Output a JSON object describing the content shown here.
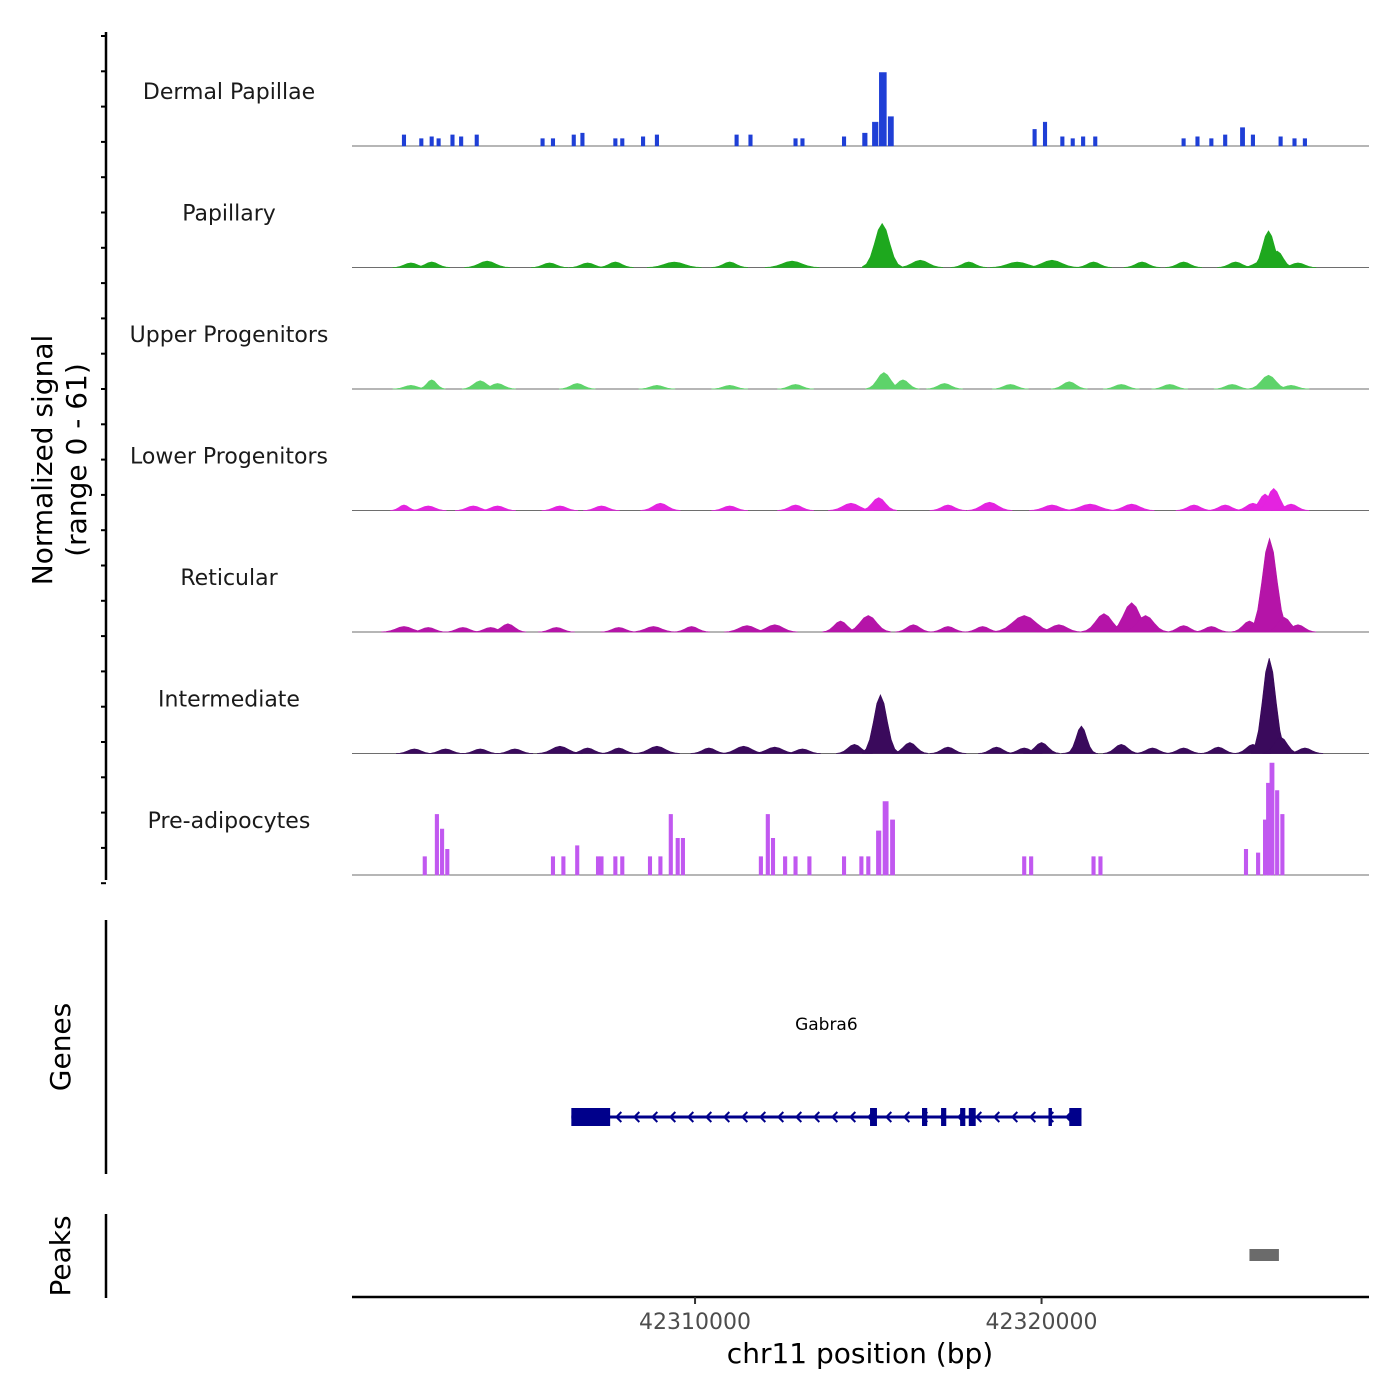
{
  "chart_data": {
    "type": "area",
    "title": "",
    "chromosome": "chr11",
    "xlabel": "chr11 position (bp)",
    "ylabel": "Normalized signal",
    "ylabel_range": "(range 0 - 61)",
    "ylim": [
      0,
      61
    ],
    "xlim": [
      42300100,
      42329450
    ],
    "x_ticks": [
      42310000,
      42320000
    ],
    "x_tick_labels": [
      "42310000",
      "42320000"
    ],
    "signal_tracks": [
      {
        "name": "Dermal Papillae",
        "color": "#1f3fd6",
        "sparse": true,
        "peaks": [
          [
            42301600,
            6,
            1
          ],
          [
            42302100,
            4,
            1
          ],
          [
            42302400,
            5,
            1
          ],
          [
            42302600,
            4,
            1
          ],
          [
            42303000,
            6,
            1
          ],
          [
            42303250,
            5,
            1
          ],
          [
            42303700,
            6,
            1
          ],
          [
            42305600,
            4,
            1
          ],
          [
            42305900,
            4,
            1
          ],
          [
            42306500,
            6,
            1
          ],
          [
            42306750,
            7,
            1
          ],
          [
            42307700,
            4,
            1
          ],
          [
            42307900,
            4,
            1
          ],
          [
            42308500,
            5,
            1
          ],
          [
            42308900,
            6,
            1
          ],
          [
            42311200,
            6,
            1
          ],
          [
            42311600,
            6,
            1
          ],
          [
            42312900,
            4,
            1
          ],
          [
            42313100,
            4,
            1
          ],
          [
            42314300,
            5,
            1
          ],
          [
            42314900,
            7,
            1.3
          ],
          [
            42315200,
            13,
            1.6
          ],
          [
            42315420,
            40,
            2
          ],
          [
            42315650,
            16,
            1.5
          ],
          [
            42319800,
            9,
            1
          ],
          [
            42320100,
            13,
            1
          ],
          [
            42320600,
            5,
            1
          ],
          [
            42320900,
            4,
            1
          ],
          [
            42321200,
            5,
            1
          ],
          [
            42321550,
            5,
            1
          ],
          [
            42324100,
            4,
            1
          ],
          [
            42324500,
            5,
            1
          ],
          [
            42324900,
            4,
            1
          ],
          [
            42325300,
            6,
            1
          ],
          [
            42325800,
            10,
            1.2
          ],
          [
            42326100,
            6,
            1
          ],
          [
            42326900,
            5,
            1
          ],
          [
            42327300,
            4,
            1
          ],
          [
            42327600,
            4,
            1
          ]
        ]
      },
      {
        "name": "Papillary",
        "color": "#1ea81e",
        "sparse": false,
        "peaks": [
          [
            42301800,
            2.5,
            2
          ],
          [
            42302400,
            3,
            2
          ],
          [
            42304000,
            3.5,
            2.5
          ],
          [
            42305800,
            2.5,
            2
          ],
          [
            42306900,
            2.5,
            2
          ],
          [
            42307700,
            3,
            2
          ],
          [
            42309400,
            3,
            3
          ],
          [
            42311000,
            3,
            2
          ],
          [
            42312800,
            3.5,
            3
          ],
          [
            42315400,
            24,
            2.2
          ],
          [
            42316500,
            4,
            2.5
          ],
          [
            42317900,
            3,
            2
          ],
          [
            42319300,
            3,
            3
          ],
          [
            42320300,
            4,
            3
          ],
          [
            42321500,
            3,
            2
          ],
          [
            42322900,
            3,
            2
          ],
          [
            42324100,
            3,
            2
          ],
          [
            42325600,
            3,
            2
          ],
          [
            42326300,
            3,
            2
          ],
          [
            42326550,
            20,
            1.8
          ],
          [
            42326800,
            9,
            1.8
          ],
          [
            42327400,
            2.5,
            2
          ]
        ]
      },
      {
        "name": "Upper Progenitors",
        "color": "#5ed36a",
        "sparse": false,
        "peaks": [
          [
            42301800,
            2,
            2
          ],
          [
            42302400,
            5,
            1.5
          ],
          [
            42303800,
            4.5,
            2
          ],
          [
            42304300,
            3,
            2
          ],
          [
            42306600,
            3,
            2
          ],
          [
            42308900,
            2,
            2
          ],
          [
            42311000,
            2,
            2
          ],
          [
            42312900,
            2.5,
            2
          ],
          [
            42315450,
            9,
            2
          ],
          [
            42316000,
            5,
            1.8
          ],
          [
            42317200,
            3,
            2
          ],
          [
            42319100,
            2.5,
            2
          ],
          [
            42320800,
            4,
            2
          ],
          [
            42322300,
            2.5,
            2
          ],
          [
            42323700,
            2.5,
            2
          ],
          [
            42325500,
            2.5,
            2
          ],
          [
            42326550,
            7.5,
            2.2
          ],
          [
            42327200,
            2,
            2
          ]
        ]
      },
      {
        "name": "Lower Progenitors",
        "color": "#e423e0",
        "sparse": false,
        "peaks": [
          [
            42301600,
            3,
            1.5
          ],
          [
            42302300,
            2.5,
            2
          ],
          [
            42303600,
            2.5,
            2
          ],
          [
            42304300,
            2.5,
            2
          ],
          [
            42306100,
            2.5,
            2
          ],
          [
            42307300,
            2.5,
            2
          ],
          [
            42309000,
            4,
            2.2
          ],
          [
            42311000,
            2.5,
            2
          ],
          [
            42312900,
            3,
            2
          ],
          [
            42314500,
            4,
            2.5
          ],
          [
            42315300,
            7,
            2
          ],
          [
            42317300,
            3,
            2
          ],
          [
            42318500,
            4.5,
            2.5
          ],
          [
            42320300,
            3,
            2.5
          ],
          [
            42321400,
            3.5,
            3
          ],
          [
            42322600,
            3.5,
            2.5
          ],
          [
            42324400,
            3,
            2
          ],
          [
            42325300,
            3,
            2
          ],
          [
            42326100,
            4,
            2
          ],
          [
            42326450,
            9,
            1.8
          ],
          [
            42326700,
            12,
            1.8
          ],
          [
            42327200,
            3.5,
            2
          ]
        ]
      },
      {
        "name": "Reticular",
        "color": "#b514a8",
        "sparse": false,
        "peaks": [
          [
            42301600,
            3,
            2.5
          ],
          [
            42302300,
            2.5,
            2
          ],
          [
            42303300,
            2.5,
            2
          ],
          [
            42304100,
            2.5,
            2
          ],
          [
            42304600,
            4.5,
            2
          ],
          [
            42306000,
            2.5,
            2
          ],
          [
            42307800,
            2.5,
            2
          ],
          [
            42308800,
            3,
            2.5
          ],
          [
            42309900,
            3,
            2
          ],
          [
            42311500,
            3.5,
            2.5
          ],
          [
            42312300,
            4,
            2.5
          ],
          [
            42314200,
            6,
            2
          ],
          [
            42315000,
            9,
            2.5
          ],
          [
            42316300,
            4,
            2
          ],
          [
            42317300,
            3,
            2
          ],
          [
            42318300,
            3,
            2
          ],
          [
            42319500,
            9,
            3.5
          ],
          [
            42320500,
            4,
            2.5
          ],
          [
            42321800,
            10,
            2.5
          ],
          [
            42322600,
            16,
            2.5
          ],
          [
            42323000,
            9,
            2.5
          ],
          [
            42324100,
            3.5,
            2
          ],
          [
            42324900,
            3,
            2
          ],
          [
            42326000,
            6,
            2
          ],
          [
            42326580,
            51,
            2.2
          ],
          [
            42327000,
            8,
            2
          ],
          [
            42327400,
            4,
            2
          ]
        ]
      },
      {
        "name": "Intermediate",
        "color": "#3a0a5c",
        "sparse": false,
        "peaks": [
          [
            42301900,
            2.5,
            2
          ],
          [
            42302800,
            2.5,
            2
          ],
          [
            42303800,
            2.5,
            2
          ],
          [
            42304800,
            2.5,
            2
          ],
          [
            42306100,
            4,
            2.5
          ],
          [
            42306900,
            3,
            2
          ],
          [
            42307800,
            3,
            2
          ],
          [
            42308900,
            4,
            2.5
          ],
          [
            42310400,
            3,
            2
          ],
          [
            42311400,
            4,
            2.5
          ],
          [
            42312300,
            3.5,
            2.5
          ],
          [
            42313100,
            2.5,
            2
          ],
          [
            42314600,
            5,
            2
          ],
          [
            42315350,
            32,
            2
          ],
          [
            42316200,
            6,
            2
          ],
          [
            42317300,
            3.5,
            2
          ],
          [
            42318700,
            3.5,
            2
          ],
          [
            42319500,
            3,
            2
          ],
          [
            42320000,
            6,
            2
          ],
          [
            42321100,
            3,
            2
          ],
          [
            42321150,
            15,
            1.6
          ],
          [
            42322300,
            5,
            2
          ],
          [
            42323200,
            3,
            2
          ],
          [
            42324100,
            3,
            2
          ],
          [
            42325100,
            3.5,
            2
          ],
          [
            42326100,
            5,
            2
          ],
          [
            42326570,
            52,
            2
          ],
          [
            42326900,
            9,
            2
          ],
          [
            42327600,
            3,
            2
          ]
        ]
      },
      {
        "name": "Pre-adipocytes",
        "color": "#c158f0",
        "sparse": true,
        "peaks": [
          [
            42302200,
            10,
            1
          ],
          [
            42302550,
            33,
            1
          ],
          [
            42302700,
            25,
            1
          ],
          [
            42302850,
            14,
            1
          ],
          [
            42305900,
            10,
            1
          ],
          [
            42306200,
            10,
            1
          ],
          [
            42306600,
            16,
            1
          ],
          [
            42307200,
            10,
            1
          ],
          [
            42307300,
            10,
            1
          ],
          [
            42307700,
            10,
            1
          ],
          [
            42307900,
            10,
            1
          ],
          [
            42308700,
            10,
            1
          ],
          [
            42309000,
            10,
            1
          ],
          [
            42309300,
            33,
            1
          ],
          [
            42309500,
            20,
            1
          ],
          [
            42309650,
            20,
            1
          ],
          [
            42311900,
            10,
            1
          ],
          [
            42312100,
            33,
            1
          ],
          [
            42312250,
            20,
            1
          ],
          [
            42312600,
            10,
            1
          ],
          [
            42312900,
            10,
            1
          ],
          [
            42313300,
            10,
            1
          ],
          [
            42314300,
            10,
            1
          ],
          [
            42314800,
            10,
            1
          ],
          [
            42315000,
            10,
            1
          ],
          [
            42315300,
            24,
            1.3
          ],
          [
            42315500,
            40,
            1.5
          ],
          [
            42315700,
            30,
            1.2
          ],
          [
            42319500,
            10,
            1
          ],
          [
            42319700,
            10,
            1
          ],
          [
            42321500,
            10,
            1
          ],
          [
            42321700,
            10,
            1
          ],
          [
            42325900,
            14,
            1
          ],
          [
            42326250,
            12,
            1
          ],
          [
            42326450,
            30,
            1
          ],
          [
            42326550,
            50,
            1.2
          ],
          [
            42326650,
            61,
            1.2
          ],
          [
            42326800,
            46,
            1
          ],
          [
            42326950,
            33,
            1
          ]
        ]
      }
    ],
    "gene_track": {
      "label": "Genes",
      "color": "#00008b",
      "gene_name": "Gabra6",
      "strand": "-",
      "start": 42306430,
      "end": 42321150,
      "exons": [
        [
          42306430,
          42307550
        ],
        [
          42315050,
          42315250
        ],
        [
          42316550,
          42316700
        ],
        [
          42317100,
          42317250
        ],
        [
          42317650,
          42317800
        ],
        [
          42317900,
          42318100
        ],
        [
          42321050,
          42321150
        ],
        [
          42320200,
          42320300
        ],
        [
          42320800,
          42321150
        ]
      ]
    },
    "peaks_track": {
      "label": "Peaks",
      "color": "#6b6b6b",
      "regions": [
        [
          42326000,
          42326850
        ]
      ]
    }
  }
}
